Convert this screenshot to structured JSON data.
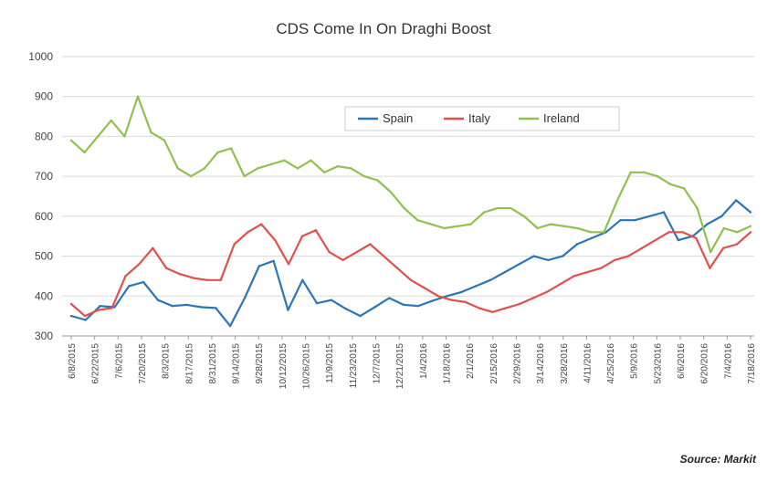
{
  "chart_data": {
    "type": "line",
    "title": "CDS Come In On Draghi Boost",
    "source": "Source: Markit",
    "xlabel": "",
    "ylabel": "",
    "ylim": [
      300,
      1000
    ],
    "yticks": [
      300,
      400,
      500,
      600,
      700,
      800,
      900,
      1000
    ],
    "x_tick_labels": [
      "6/8/2015",
      "6/22/2015",
      "7/6/2015",
      "7/20/2015",
      "8/3/2015",
      "8/17/2015",
      "8/31/2015",
      "9/14/2015",
      "9/28/2015",
      "10/12/2015",
      "10/26/2015",
      "11/9/2015",
      "11/23/2015",
      "12/7/2015",
      "12/21/2015",
      "1/4/2016",
      "1/18/2016",
      "2/1/2016",
      "2/15/2016",
      "2/29/2016",
      "3/14/2016",
      "3/28/2016",
      "4/11/2016",
      "4/25/2016",
      "5/9/2016",
      "5/23/2016",
      "6/6/2016",
      "6/20/2016",
      "7/4/2016",
      "7/18/2016"
    ],
    "legend": {
      "position": "top-right"
    },
    "series": [
      {
        "name": "Spain",
        "color": "#2e75b6",
        "values": [
          350,
          340,
          375,
          372,
          425,
          435,
          390,
          375,
          378,
          372,
          370,
          325,
          395,
          475,
          488,
          365,
          440,
          382,
          390,
          368,
          350,
          372,
          395,
          378,
          375,
          388,
          400,
          410,
          425,
          440,
          460,
          480,
          500,
          490,
          500,
          530,
          545,
          560,
          590,
          590,
          600,
          610,
          540,
          550,
          580,
          600,
          640,
          610
        ]
      },
      {
        "name": "Italy",
        "color": "#e05050",
        "values": [
          380,
          350,
          365,
          370,
          450,
          480,
          520,
          470,
          455,
          445,
          440,
          440,
          530,
          560,
          580,
          540,
          480,
          550,
          565,
          510,
          490,
          510,
          530,
          500,
          470,
          440,
          420,
          400,
          390,
          385,
          370,
          360,
          370,
          380,
          395,
          410,
          430,
          450,
          460,
          470,
          490,
          500,
          520,
          540,
          560,
          560,
          545,
          470,
          520,
          530,
          560
        ]
      },
      {
        "name": "Ireland",
        "color": "#92c050",
        "values": [
          790,
          760,
          800,
          840,
          800,
          900,
          810,
          790,
          720,
          700,
          720,
          760,
          770,
          700,
          720,
          730,
          740,
          720,
          740,
          710,
          725,
          720,
          700,
          690,
          660,
          620,
          590,
          580,
          570,
          575,
          580,
          610,
          620,
          620,
          600,
          570,
          580,
          575,
          570,
          560,
          560,
          640,
          710,
          710,
          700,
          680,
          670,
          620,
          510,
          570,
          560,
          575
        ]
      }
    ]
  }
}
